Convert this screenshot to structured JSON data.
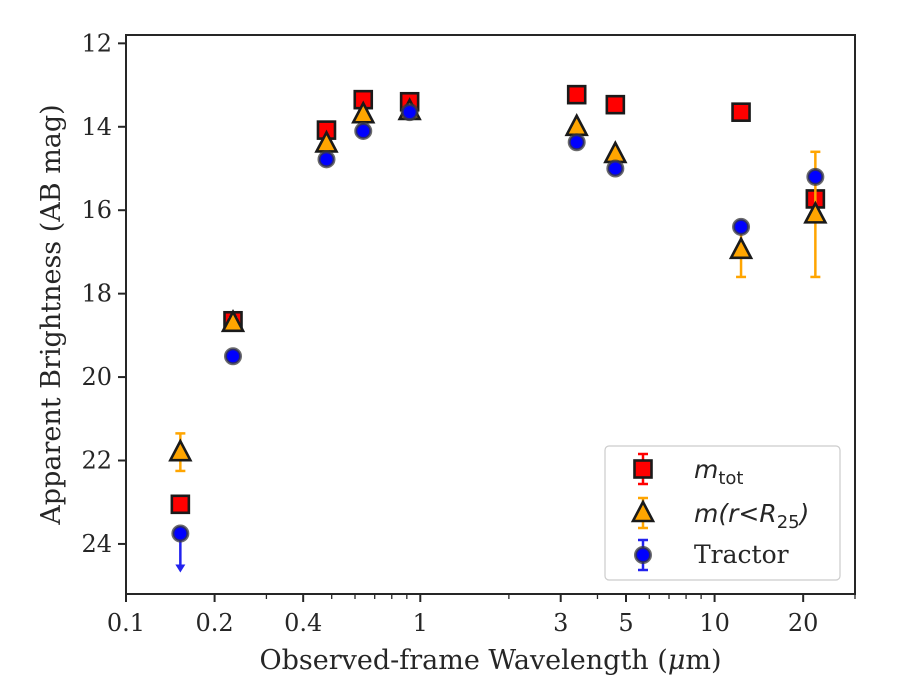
{
  "chart_data": {
    "type": "scatter",
    "xlabel_prefix": "Observed-frame Wavelength (",
    "xlabel_mu": "μ",
    "xlabel_suffix": "m)",
    "ylabel": "Apparent Brightness (AB mag)",
    "x_scale": "log",
    "xlim": [
      0.1,
      30
    ],
    "ylim": [
      25.2,
      11.8
    ],
    "y_inverted": true,
    "x_ticks": [
      {
        "value": 0.1,
        "label": "0.1"
      },
      {
        "value": 0.2,
        "label": "0.2"
      },
      {
        "value": 0.4,
        "label": "0.4"
      },
      {
        "value": 1,
        "label": "1"
      },
      {
        "value": 3,
        "label": "3"
      },
      {
        "value": 5,
        "label": "5"
      },
      {
        "value": 10,
        "label": "10"
      },
      {
        "value": 20,
        "label": "20"
      }
    ],
    "y_ticks": [
      12,
      14,
      16,
      18,
      20,
      22,
      24
    ],
    "grid": false,
    "legend_position": "lower right",
    "legend": [
      {
        "italic": "m",
        "sub": "tot",
        "suffix": "",
        "text": ""
      },
      {
        "italic": "m(r<R",
        "sub": "25",
        "suffix": ")",
        "text": ""
      },
      {
        "italic": "",
        "sub": "",
        "suffix": "",
        "text": "Tractor"
      }
    ],
    "series": [
      {
        "marker": "square",
        "color": "#ff0000",
        "errcolor": "#ff0000",
        "points": [
          {
            "x": 0.153,
            "y": 23.05,
            "err": 0.05
          },
          {
            "x": 0.231,
            "y": 18.65,
            "err": 0.1
          },
          {
            "x": 0.48,
            "y": 14.08,
            "err": 0.05
          },
          {
            "x": 0.64,
            "y": 13.35,
            "err": 0.05
          },
          {
            "x": 0.92,
            "y": 13.4,
            "err": 0.05
          },
          {
            "x": 3.4,
            "y": 13.23,
            "err": 0.05
          },
          {
            "x": 4.6,
            "y": 13.47,
            "err": 0.05
          },
          {
            "x": 12.3,
            "y": 13.65,
            "err": 0.05
          },
          {
            "x": 22.0,
            "y": 15.73,
            "err": 0.1
          }
        ]
      },
      {
        "marker": "triangle",
        "color": "#ffa500",
        "errcolor": "#ffa500",
        "points": [
          {
            "x": 0.153,
            "y": 21.8,
            "err": 0.45
          },
          {
            "x": 0.231,
            "y": 18.7,
            "err": 0.1
          },
          {
            "x": 0.48,
            "y": 14.4,
            "err": 0.05
          },
          {
            "x": 0.64,
            "y": 13.7,
            "err": 0.05
          },
          {
            "x": 0.92,
            "y": 13.62,
            "err": 0.05
          },
          {
            "x": 3.4,
            "y": 14.0,
            "err": 0.05
          },
          {
            "x": 4.6,
            "y": 14.65,
            "err": 0.05
          },
          {
            "x": 12.3,
            "y": 16.95,
            "err": 0.65
          },
          {
            "x": 22.0,
            "y": 16.1,
            "err": 1.5
          }
        ]
      },
      {
        "marker": "circle",
        "color": "#0000ff",
        "errcolor": "#2222ee",
        "points": [
          {
            "x": 0.153,
            "y": 23.75,
            "err": 0.05,
            "upper_limit": true
          },
          {
            "x": 0.231,
            "y": 19.5,
            "err": 0.05
          },
          {
            "x": 0.48,
            "y": 14.78,
            "err": 0.05
          },
          {
            "x": 0.64,
            "y": 14.1,
            "err": 0.05
          },
          {
            "x": 0.92,
            "y": 13.65,
            "err": 0.05
          },
          {
            "x": 3.4,
            "y": 14.37,
            "err": 0.05
          },
          {
            "x": 4.6,
            "y": 15.0,
            "err": 0.05
          },
          {
            "x": 12.3,
            "y": 16.4,
            "err": 0.05
          },
          {
            "x": 22.0,
            "y": 15.2,
            "err": 0.1
          }
        ]
      }
    ]
  }
}
